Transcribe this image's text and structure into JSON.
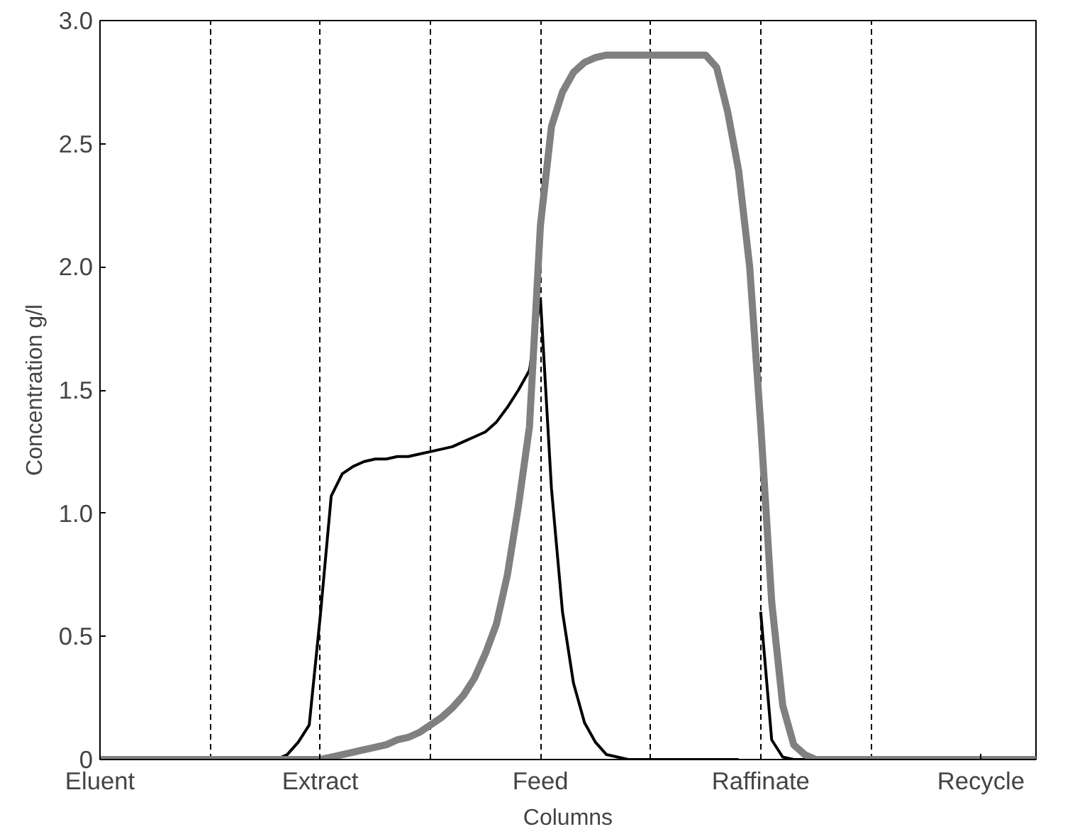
{
  "chart_data": {
    "type": "line",
    "xlabel": "Columns",
    "ylabel": "Concentration g/l",
    "categories": [
      "Eluent",
      null,
      null,
      null,
      null,
      null,
      null,
      null,
      null,
      null,
      null,
      null,
      null,
      null,
      null,
      null,
      null,
      null,
      null,
      null,
      "Extract",
      null,
      null,
      null,
      null,
      null,
      null,
      null,
      null,
      null,
      null,
      null,
      null,
      null,
      null,
      null,
      null,
      null,
      null,
      null,
      "Feed",
      null,
      null,
      null,
      null,
      null,
      null,
      null,
      null,
      null,
      null,
      null,
      null,
      null,
      null,
      null,
      null,
      null,
      null,
      null,
      "Raffinate",
      null,
      null,
      null,
      null,
      null,
      null,
      null,
      null,
      null,
      null,
      null,
      null,
      null,
      null,
      null,
      null,
      null,
      null,
      null,
      "Recycle",
      null,
      null,
      null,
      null,
      null
    ],
    "ylim": [
      0,
      3
    ],
    "yticks": [
      0,
      {
        "value": 0.5,
        "label": "0.5"
      },
      {
        "value": 1,
        "label": "1.0"
      },
      {
        "value": 1.5,
        "label": "1.5"
      },
      {
        "value": 2,
        "label": "2.0"
      },
      {
        "value": 2.5,
        "label": "2.5"
      },
      {
        "value": 3,
        "label": "3.0"
      }
    ],
    "grid": "x",
    "marker": "none",
    "line_style": "solid",
    "series": [
      {
        "color": "#000000",
        "values": [
          0,
          0,
          0,
          0,
          0,
          0,
          0,
          0,
          0,
          0,
          0,
          0,
          0,
          0,
          0,
          0,
          0,
          0.02,
          0.07,
          0.14,
          0.58,
          1.07,
          1.16,
          1.19,
          1.21,
          1.22,
          1.22,
          1.23,
          1.23,
          1.24,
          1.25,
          1.26,
          1.27,
          1.29,
          1.31,
          1.33,
          1.37,
          1.43,
          1.5,
          1.58,
          1.87,
          1.1,
          0.6,
          0.31,
          0.15,
          0.07,
          0.02,
          0.01,
          0,
          0,
          0,
          0,
          0,
          0,
          0,
          0,
          0,
          0,
          0,
          null,
          0.6,
          0.08,
          0.01,
          0,
          0,
          0,
          0,
          0,
          0,
          0,
          0,
          0,
          0,
          0,
          0,
          0,
          0,
          0,
          0,
          0,
          0,
          0,
          0,
          0,
          0,
          0
        ]
      },
      {
        "color": "#808080",
        "values": [
          0,
          0,
          0,
          0,
          0,
          0,
          0,
          0,
          0,
          0,
          0,
          0,
          0,
          0,
          0,
          0,
          0,
          0,
          0,
          0,
          0,
          0.01,
          0.02,
          0.03,
          0.04,
          0.05,
          0.06,
          0.08,
          0.09,
          0.11,
          0.14,
          0.17,
          0.21,
          0.26,
          0.33,
          0.43,
          0.55,
          0.75,
          1.03,
          1.35,
          2.17,
          2.57,
          2.71,
          2.79,
          2.83,
          2.85,
          2.86,
          2.86,
          2.86,
          2.86,
          2.86,
          2.86,
          2.86,
          2.86,
          2.86,
          2.86,
          2.81,
          2.63,
          2.39,
          2.0,
          1.36,
          0.64,
          0.22,
          0.06,
          0.02,
          0,
          0,
          0,
          0,
          0,
          0,
          0,
          0,
          0,
          0,
          0,
          0,
          0,
          0,
          0,
          0,
          0,
          0,
          0,
          0,
          0
        ]
      }
    ]
  }
}
